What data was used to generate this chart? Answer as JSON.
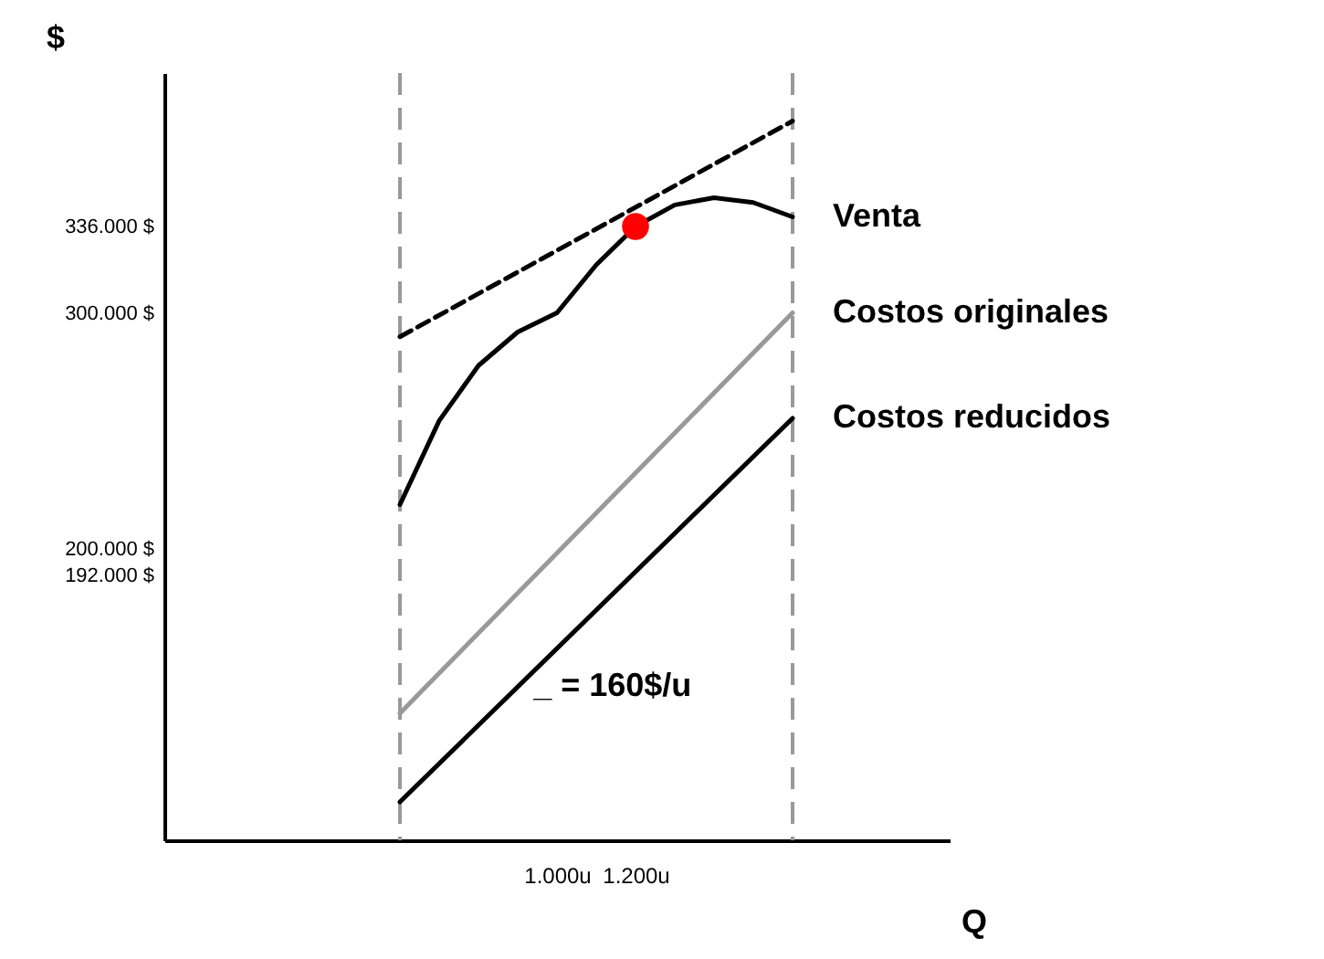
{
  "chart_data": {
    "type": "line",
    "xlabel": "Q",
    "ylabel": "$",
    "xlim": [
      0,
      2000
    ],
    "ylim": [
      80000,
      400000
    ],
    "xticks": [
      {
        "value": 1000,
        "label": "1.000u"
      },
      {
        "value": 1200,
        "label": "1.200u"
      }
    ],
    "yticks": [
      {
        "value": 192000,
        "label": "192.000 $"
      },
      {
        "value": 200000,
        "label": "200.000 $"
      },
      {
        "value": 300000,
        "label": "300.000 $"
      },
      {
        "value": 336000,
        "label": "336.000 $"
      }
    ],
    "series": [
      {
        "color": "#000000",
        "line_style": "dashed",
        "x": [
          600,
          1600
        ],
        "values": [
          290000,
          380000
        ]
      },
      {
        "name": "Venta",
        "color": "#000000",
        "x": [
          600,
          700,
          800,
          900,
          1000,
          1100,
          1200,
          1300,
          1400,
          1500,
          1600
        ],
        "values": [
          220000,
          255000,
          278000,
          292000,
          300000,
          320000,
          336000,
          345000,
          348000,
          346000,
          340000
        ]
      },
      {
        "name": "Costos originales",
        "color": "#999999",
        "x": [
          600,
          1600
        ],
        "values": [
          133000,
          300000
        ]
      },
      {
        "name": "Costos reducidos",
        "color": "#000000",
        "x": [
          600,
          1600
        ],
        "values": [
          96000,
          256000
        ]
      },
      {
        "type": "scatter",
        "marker": "circle",
        "color": "#ff0000",
        "x": [
          1200
        ],
        "values": [
          336000
        ]
      }
    ],
    "ref_lines": [
      {
        "axis": "x",
        "value": 600,
        "color": "#999999",
        "line_style": "dashed"
      },
      {
        "axis": "x",
        "value": 1600,
        "color": "#999999",
        "line_style": "dashed"
      }
    ],
    "annotations": [
      "_ = 160$/u"
    ]
  }
}
